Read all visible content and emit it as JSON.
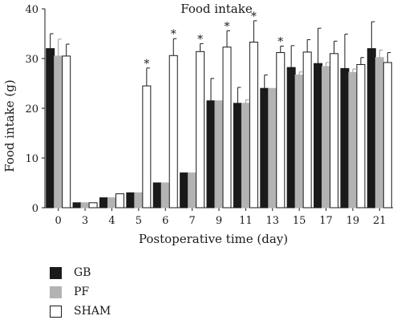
{
  "chart_data": {
    "type": "bar",
    "title": "Food intake",
    "xlabel": "Postoperative time (day)",
    "ylabel": "Food intake (g)",
    "ylim": [
      0,
      40
    ],
    "yticks": [
      0,
      10,
      20,
      30,
      40
    ],
    "categories": [
      "0",
      "3",
      "4",
      "5",
      "6",
      "7",
      "9",
      "11",
      "13",
      "15",
      "17",
      "19",
      "21"
    ],
    "series": [
      {
        "name": "GB",
        "color": "#1a1a1a",
        "values": [
          32,
          1,
          2,
          3,
          5,
          7,
          21.5,
          21,
          24,
          28.2,
          29,
          28,
          32
        ],
        "errors": [
          3,
          0,
          0,
          0,
          0,
          0,
          4.5,
          3.2,
          2.7,
          4.4,
          7.1,
          6.9,
          5.4
        ]
      },
      {
        "name": "PF",
        "color": "#b3b3b3",
        "values": [
          30.5,
          1,
          2,
          3,
          5,
          7,
          21.5,
          21,
          24,
          26.7,
          28.4,
          27.2,
          30.2
        ],
        "errors": [
          3.4,
          0,
          0,
          0,
          0,
          0,
          0,
          0.7,
          0,
          0.6,
          0.8,
          0.7,
          1.5
        ]
      },
      {
        "name": "SHAM",
        "color": "#ffffff",
        "values": [
          30.5,
          1,
          2.8,
          24.5,
          30.6,
          31.4,
          32.3,
          33.3,
          31.2,
          31.3,
          31,
          28.8,
          29.2
        ],
        "errors": [
          2.4,
          0,
          0,
          3.6,
          3.4,
          1.6,
          3.3,
          4.3,
          1.3,
          2.5,
          2.5,
          1.4,
          2
        ]
      }
    ],
    "significance": [
      "",
      "",
      "",
      "*",
      "*",
      "*",
      "*",
      "*",
      "*",
      "",
      "",
      "",
      ""
    ],
    "legend_position": "bottom-left",
    "grid": false
  }
}
